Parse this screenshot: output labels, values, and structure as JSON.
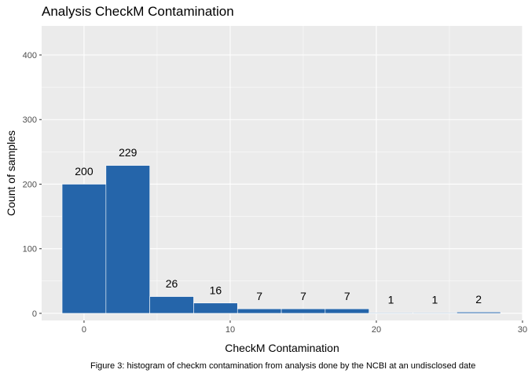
{
  "chart_data": {
    "type": "bar",
    "title": "Analysis CheckM Contamination",
    "xlabel": "CheckM Contamination",
    "ylabel": "Count of samples",
    "caption": "Figure 3: histogram of checkm contamination from analysis done by the NCBI at an undisclosed date",
    "bin_width": 3,
    "bins": [
      {
        "x_start": -1.5,
        "x_end": 1.5,
        "count": 200
      },
      {
        "x_start": 1.5,
        "x_end": 4.5,
        "count": 229
      },
      {
        "x_start": 4.5,
        "x_end": 7.5,
        "count": 26
      },
      {
        "x_start": 7.5,
        "x_end": 10.5,
        "count": 16
      },
      {
        "x_start": 10.5,
        "x_end": 13.5,
        "count": 7
      },
      {
        "x_start": 13.5,
        "x_end": 16.5,
        "count": 7
      },
      {
        "x_start": 16.5,
        "x_end": 19.5,
        "count": 7
      },
      {
        "x_start": 19.5,
        "x_end": 22.5,
        "count": 1
      },
      {
        "x_start": 22.5,
        "x_end": 25.5,
        "count": 1
      },
      {
        "x_start": 25.5,
        "x_end": 28.5,
        "count": 2
      }
    ],
    "xlim": [
      -2.9,
      30
    ],
    "ylim": [
      -11,
      445
    ],
    "x_ticks": [
      0,
      10,
      20,
      30
    ],
    "y_ticks": [
      0,
      100,
      200,
      300,
      400
    ],
    "grid": true,
    "bar_color": "#2565AA",
    "panel_background": "#EBEBEB",
    "grid_color": "#FFFFFF"
  }
}
